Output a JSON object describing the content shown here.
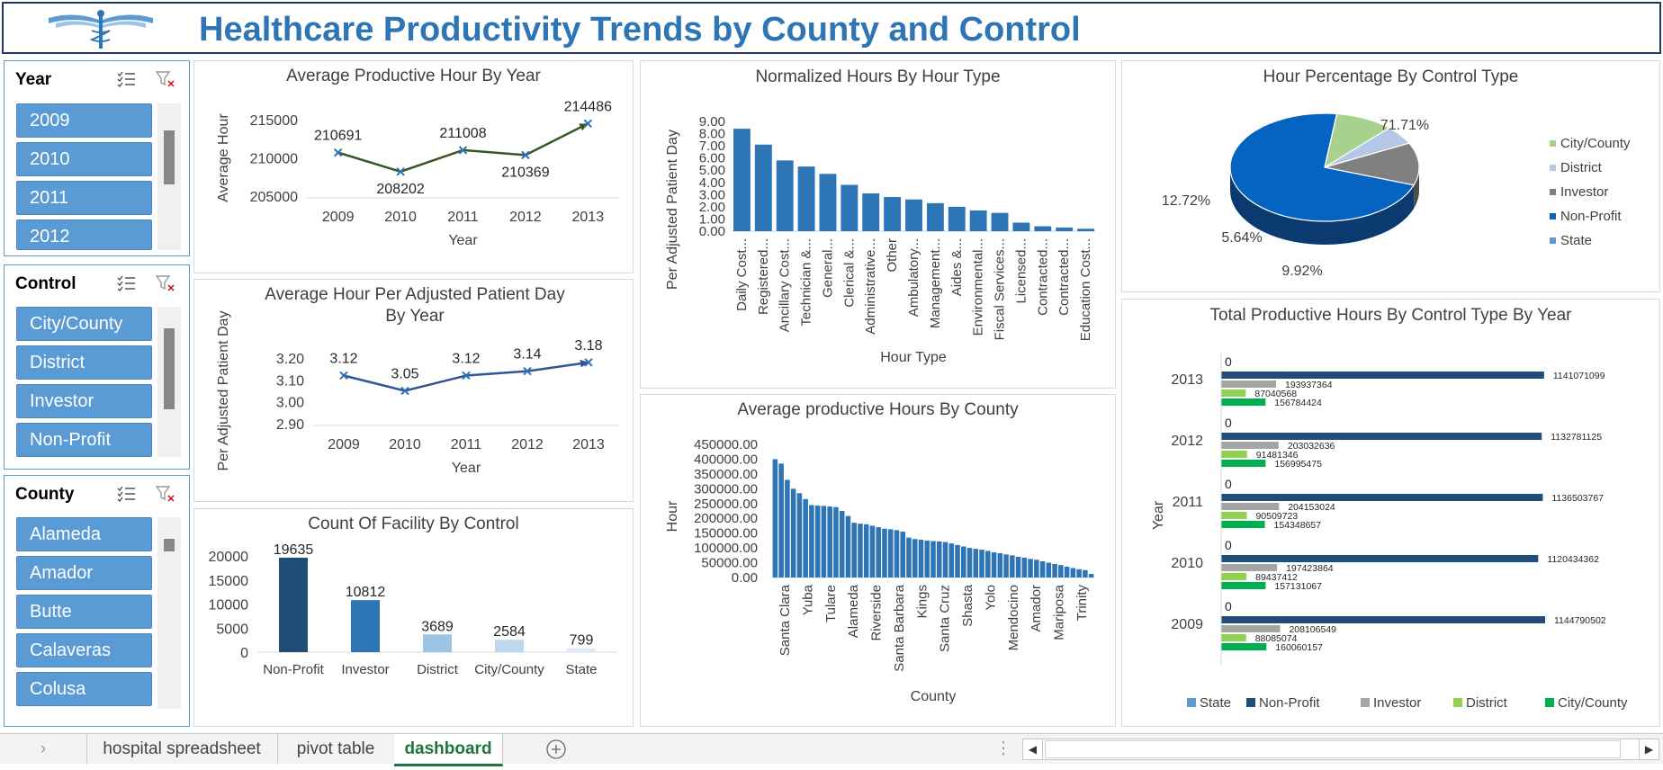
{
  "title": "Healthcare Productivity Trends by County and Control",
  "slicers": {
    "year": {
      "title": "Year",
      "items": [
        "2009",
        "2010",
        "2011",
        "2012"
      ]
    },
    "control": {
      "title": "Control",
      "items": [
        "City/County",
        "District",
        "Investor",
        "Non-Profit"
      ]
    },
    "county": {
      "title": "County",
      "items": [
        "Alameda",
        "Amador",
        "Butte",
        "Calaveras",
        "Colusa"
      ]
    }
  },
  "icons": {
    "multiselect": "multi-select-icon",
    "clearfilter": "clear-filter-icon"
  },
  "colors": {
    "accent": "#2e75b6",
    "slicer": "#5b9bd5",
    "navy": "#1f4e79",
    "green": "#70ad47"
  },
  "tabs": {
    "sheets": [
      "hospital  spreadsheet",
      "pivot table",
      "dashboard"
    ],
    "active": "dashboard"
  },
  "chart_data": [
    {
      "id": "avg_hour_year",
      "type": "line",
      "title": "Average Productive Hour By Year",
      "xlabel": "Year",
      "ylabel": "Average Hour",
      "categories": [
        "2009",
        "2010",
        "2011",
        "2012",
        "2013"
      ],
      "values": [
        210691,
        208202,
        211008,
        210369,
        214486
      ],
      "labels": [
        "210691",
        "208202",
        "211008",
        "210369",
        "214486"
      ],
      "ylim": [
        205000,
        215000
      ],
      "yticks": [
        "205000",
        "210000",
        "215000"
      ]
    },
    {
      "id": "avg_hour_adj",
      "type": "line",
      "title": "Average Hour Per Adjusted Patient Day By Year",
      "xlabel": "Year",
      "ylabel": "Per Adjusted Patient Day",
      "categories": [
        "2009",
        "2010",
        "2011",
        "2012",
        "2013"
      ],
      "values": [
        3.12,
        3.05,
        3.12,
        3.14,
        3.18
      ],
      "labels": [
        "3.12",
        "3.05",
        "3.12",
        "3.14",
        "3.18"
      ],
      "ylim": [
        2.9,
        3.2
      ],
      "yticks": [
        "2.90",
        "3.00",
        "3.10",
        "3.20"
      ]
    },
    {
      "id": "count_facility",
      "type": "bar",
      "title": "Count Of Facility By Control",
      "categories": [
        "Non-Profit",
        "Investor",
        "District",
        "City/County",
        "State"
      ],
      "values": [
        19635,
        10812,
        3689,
        2584,
        799
      ],
      "labels": [
        "19635",
        "10812",
        "3689",
        "2584",
        "799"
      ],
      "ylim": [
        0,
        20000
      ],
      "yticks": [
        "0",
        "5000",
        "10000",
        "15000",
        "20000"
      ]
    },
    {
      "id": "normalized_hours",
      "type": "bar",
      "title": "Normalized Hours By Hour Type",
      "xlabel": "Hour Type",
      "ylabel": "Per Adjusted Patient Day",
      "categories": [
        "Daily Cost...",
        "Registered...",
        "Ancillary Cost...",
        "Technician &...",
        "General...",
        "Clerical &...",
        "Administrative...",
        "Other",
        "Ambulatory...",
        "Management...",
        "Aides &...",
        "Environmental...",
        "Fiscal Services...",
        "Licensed...",
        "Contracted...",
        "Contracted...",
        "Education Cost..."
      ],
      "values": [
        8.4,
        7.1,
        5.8,
        5.3,
        4.7,
        3.8,
        3.1,
        2.8,
        2.6,
        2.3,
        2.0,
        1.7,
        1.5,
        0.7,
        0.4,
        0.3,
        0.2
      ],
      "ylim": [
        0,
        9
      ],
      "yticks": [
        "0.00",
        "1.00",
        "2.00",
        "3.00",
        "4.00",
        "5.00",
        "6.00",
        "7.00",
        "8.00",
        "9.00"
      ]
    },
    {
      "id": "avg_county",
      "type": "bar",
      "title": "Average productive Hours By County",
      "xlabel": "County",
      "ylabel": "Hour",
      "tick_labels": [
        "Santa Clara",
        "Yuba",
        "Tulare",
        "Alameda",
        "Riverside",
        "Santa Barbara",
        "Kings",
        "Santa Cruz",
        "Shasta",
        "Yolo",
        "Mendocino",
        "Amador",
        "Mariposa",
        "Trinity"
      ],
      "values": [
        400000,
        385000,
        330000,
        300000,
        285000,
        265000,
        245000,
        243000,
        242000,
        240000,
        238000,
        225000,
        208000,
        185000,
        182000,
        180000,
        175000,
        170000,
        165000,
        163000,
        160000,
        155000,
        135000,
        130000,
        128000,
        125000,
        123000,
        122000,
        120000,
        115000,
        110000,
        105000,
        100000,
        97000,
        94000,
        90000,
        85000,
        82000,
        78000,
        75000,
        70000,
        67000,
        63000,
        60000,
        55000,
        50000,
        46000,
        42000,
        37000,
        32000,
        28000,
        25000,
        12000
      ],
      "ylim": [
        0,
        450000
      ],
      "yticks": [
        "0.00",
        "50000.00",
        "100000.00",
        "150000.00",
        "200000.00",
        "250000.00",
        "300000.00",
        "350000.00",
        "400000.00",
        "450000.00"
      ]
    },
    {
      "id": "pct_control",
      "type": "pie",
      "title": "Hour Percentage By Control Type",
      "categories": [
        "City/County",
        "District",
        "Investor",
        "Non-Profit",
        "State"
      ],
      "values": [
        9.92,
        5.64,
        12.72,
        71.71,
        0.01
      ],
      "labels": [
        "9.92%",
        "5.64%",
        "12.72%",
        "71.71%"
      ],
      "colors": [
        "#a9d18e",
        "#b4c7e7",
        "#7f7f7f",
        "#0563c1",
        "#5b9bd5"
      ],
      "legend": "right"
    },
    {
      "id": "total_hours",
      "type": "bar",
      "title": "Total Productive Hours By Control Type By Year",
      "ylabel": "Year",
      "categories": [
        "2013",
        "2012",
        "2011",
        "2010",
        "2009"
      ],
      "series": [
        {
          "name": "State",
          "color": "#5b9bd5",
          "values": [
            0,
            0,
            0,
            0,
            0
          ],
          "labels": [
            "0",
            "0",
            "0",
            "0",
            "0"
          ]
        },
        {
          "name": "Non-Profit",
          "color": "#1f4e79",
          "values": [
            1141071099,
            1132781125,
            1136503767,
            1120434362,
            1144790502
          ],
          "labels": [
            "1141071099",
            "1132781125",
            "1136503767",
            "1120434362",
            "1144790502"
          ]
        },
        {
          "name": "Investor",
          "color": "#a5a5a5",
          "values": [
            193937364,
            203032636,
            204153024,
            197423864,
            208106549
          ],
          "labels": [
            "193937364",
            "203032636",
            "204153024",
            "197423864",
            "208106549"
          ]
        },
        {
          "name": "District",
          "color": "#92d050",
          "values": [
            87040568,
            91481346,
            90509723,
            89437412,
            88085074
          ],
          "labels": [
            "87040568",
            "91481346",
            "90509723",
            "89437412",
            "88085074"
          ]
        },
        {
          "name": "City/County",
          "color": "#00b050",
          "values": [
            156784424,
            156995475,
            154348657,
            157131067,
            160060157
          ],
          "labels": [
            "156784424",
            "156995475",
            "154348657",
            "157131067",
            "160060157"
          ]
        }
      ],
      "legend": "bottom"
    }
  ]
}
